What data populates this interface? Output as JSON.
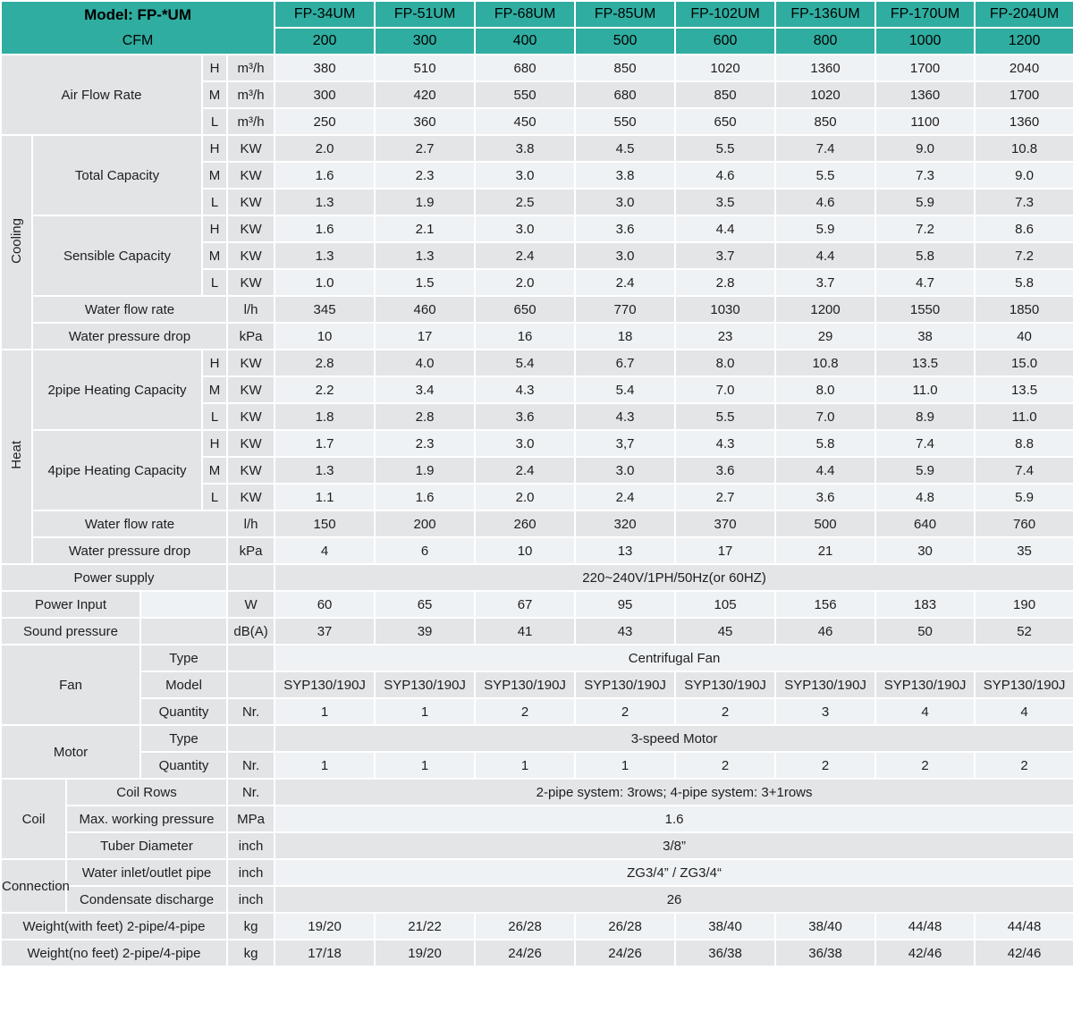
{
  "colors": {
    "header_teal": "#2fada0",
    "row_light": "#eff2f4",
    "row_dark": "#e3e5e7",
    "left_cell_gray": "#e2e4e6",
    "grid_white": "#ffffff"
  },
  "header": {
    "model_label": "Model: FP-*UM",
    "cfm_label": "CFM",
    "models": [
      "FP-34UM",
      "FP-51UM",
      "FP-68UM",
      "FP-85UM",
      "FP-102UM",
      "FP-136UM",
      "FP-170UM",
      "FP-204UM"
    ],
    "cfm": [
      "200",
      "300",
      "400",
      "500",
      "600",
      "800",
      "1000",
      "1200"
    ]
  },
  "rows": [
    {
      "label": {
        "text": "Air Flow Rate",
        "span": 4,
        "rowspan": 3
      },
      "speed": "H",
      "unit": "m³/h",
      "values": [
        "380",
        "510",
        "680",
        "850",
        "1020",
        "1360",
        "1700",
        "2040"
      ]
    },
    {
      "speed": "M",
      "unit": "m³/h",
      "values": [
        "300",
        "420",
        "550",
        "680",
        "850",
        "1020",
        "1360",
        "1700"
      ]
    },
    {
      "speed": "L",
      "unit": "m³/h",
      "values": [
        "250",
        "360",
        "450",
        "550",
        "650",
        "850",
        "1100",
        "1360"
      ]
    },
    {
      "group": {
        "text": "Cooling",
        "span": 1,
        "rowspan": 8,
        "vert": true
      },
      "label": {
        "text": "Total Capacity",
        "span": 3,
        "rowspan": 3
      },
      "speed": "H",
      "unit": "KW",
      "values": [
        "2.0",
        "2.7",
        "3.8",
        "4.5",
        "5.5",
        "7.4",
        "9.0",
        "10.8"
      ]
    },
    {
      "speed": "M",
      "unit": "KW",
      "values": [
        "1.6",
        "2.3",
        "3.0",
        "3.8",
        "4.6",
        "5.5",
        "7.3",
        "9.0"
      ]
    },
    {
      "speed": "L",
      "unit": "KW",
      "values": [
        "1.3",
        "1.9",
        "2.5",
        "3.0",
        "3.5",
        "4.6",
        "5.9",
        "7.3"
      ]
    },
    {
      "label": {
        "text": "Sensible Capacity",
        "span": 3,
        "rowspan": 3
      },
      "speed": "H",
      "unit": "KW",
      "values": [
        "1.6",
        "2.1",
        "3.0",
        "3.6",
        "4.4",
        "5.9",
        "7.2",
        "8.6"
      ]
    },
    {
      "speed": "M",
      "unit": "KW",
      "values": [
        "1.3",
        "1.3",
        "2.4",
        "3.0",
        "3.7",
        "4.4",
        "5.8",
        "7.2"
      ]
    },
    {
      "speed": "L",
      "unit": "KW",
      "values": [
        "1.0",
        "1.5",
        "2.0",
        "2.4",
        "2.8",
        "3.7",
        "4.7",
        "5.8"
      ]
    },
    {
      "label": {
        "text": "Water flow rate",
        "span": 4
      },
      "unit": "l/h",
      "values": [
        "345",
        "460",
        "650",
        "770",
        "1030",
        "1200",
        "1550",
        "1850"
      ]
    },
    {
      "label": {
        "text": "Water pressure drop",
        "span": 4
      },
      "unit": "kPa",
      "values": [
        "10",
        "17",
        "16",
        "18",
        "23",
        "29",
        "38",
        "40"
      ]
    },
    {
      "group": {
        "text": "Heat",
        "span": 1,
        "rowspan": 8,
        "vert": true
      },
      "label": {
        "text": "2pipe Heating Capacity",
        "span": 3,
        "rowspan": 3
      },
      "speed": "H",
      "unit": "KW",
      "values": [
        "2.8",
        "4.0",
        "5.4",
        "6.7",
        "8.0",
        "10.8",
        "13.5",
        "15.0"
      ]
    },
    {
      "speed": "M",
      "unit": "KW",
      "values": [
        "2.2",
        "3.4",
        "4.3",
        "5.4",
        "7.0",
        "8.0",
        "11.0",
        "13.5"
      ]
    },
    {
      "speed": "L",
      "unit": "KW",
      "values": [
        "1.8",
        "2.8",
        "3.6",
        "4.3",
        "5.5",
        "7.0",
        "8.9",
        "11.0"
      ]
    },
    {
      "label": {
        "text": "4pipe Heating Capacity",
        "span": 3,
        "rowspan": 3
      },
      "speed": "H",
      "unit": "KW",
      "values": [
        "1.7",
        "2.3",
        "3.0",
        "3,7",
        "4.3",
        "5.8",
        "7.4",
        "8.8"
      ]
    },
    {
      "speed": "M",
      "unit": "KW",
      "values": [
        "1.3",
        "1.9",
        "2.4",
        "3.0",
        "3.6",
        "4.4",
        "5.9",
        "7.4"
      ]
    },
    {
      "speed": "L",
      "unit": "KW",
      "values": [
        "1.1",
        "1.6",
        "2.0",
        "2.4",
        "2.7",
        "3.6",
        "4.8",
        "5.9"
      ]
    },
    {
      "label": {
        "text": "Water flow rate",
        "span": 4
      },
      "unit": "l/h",
      "values": [
        "150",
        "200",
        "260",
        "320",
        "370",
        "500",
        "640",
        "760"
      ]
    },
    {
      "label": {
        "text": "Water pressure drop",
        "span": 4
      },
      "unit": "kPa",
      "values": [
        "4",
        "6",
        "10",
        "13",
        "17",
        "21",
        "30",
        "35"
      ]
    },
    {
      "label": {
        "text": "Power supply",
        "span": 5
      },
      "unit": "",
      "valueSpan": "220~240V/1PH/50Hz(or 60HZ)"
    },
    {
      "label": {
        "text": "Power Input",
        "span": 3
      },
      "gap": true,
      "unit": "W",
      "values": [
        "60",
        "65",
        "67",
        "95",
        "105",
        "156",
        "183",
        "190"
      ]
    },
    {
      "label": {
        "text": "Sound pressure",
        "span": 3
      },
      "gap": true,
      "unit": "dB(A)",
      "values": [
        "37",
        "39",
        "41",
        "43",
        "45",
        "46",
        "50",
        "52"
      ]
    },
    {
      "group": {
        "text": "Fan",
        "span": 3,
        "rowspan": 3
      },
      "label": {
        "text": "Type",
        "span": 2
      },
      "unit": "",
      "valueSpan": "Centrifugal Fan"
    },
    {
      "label": {
        "text": "Model",
        "span": 2
      },
      "unit": "",
      "values": [
        "SYP130/190J",
        "SYP130/190J",
        "SYP130/190J",
        "SYP130/190J",
        "SYP130/190J",
        "SYP130/190J",
        "SYP130/190J",
        "SYP130/190J"
      ]
    },
    {
      "label": {
        "text": "Quantity",
        "span": 2
      },
      "unit": "Nr.",
      "values": [
        "1",
        "1",
        "2",
        "2",
        "2",
        "3",
        "4",
        "4"
      ]
    },
    {
      "group": {
        "text": "Motor",
        "span": 3,
        "rowspan": 2
      },
      "label": {
        "text": "Type",
        "span": 2
      },
      "unit": "",
      "valueSpan": "3-speed Motor"
    },
    {
      "label": {
        "text": "Quantity",
        "span": 2
      },
      "unit": "Nr.",
      "values": [
        "1",
        "1",
        "1",
        "1",
        "2",
        "2",
        "2",
        "2"
      ]
    },
    {
      "group": {
        "text": "Coil",
        "span": 2,
        "rowspan": 3
      },
      "label": {
        "text": "Coil Rows",
        "span": 3
      },
      "unit": "Nr.",
      "valueSpan": "2-pipe system: 3rows; 4-pipe system: 3+1rows"
    },
    {
      "label": {
        "text": "Max. working pressure",
        "span": 3
      },
      "unit": "MPa",
      "valueSpan": "1.6"
    },
    {
      "label": {
        "text": "Tuber Diameter",
        "span": 3
      },
      "unit": "inch",
      "valueSpan": "3/8”"
    },
    {
      "group": {
        "text": "Connection",
        "span": 2,
        "rowspan": 2
      },
      "label": {
        "text": "Water inlet/outlet pipe",
        "span": 3
      },
      "unit": "inch",
      "valueSpan": "ZG3/4” / ZG3/4“"
    },
    {
      "label": {
        "text": "Condensate discharge",
        "span": 3
      },
      "unit": "inch",
      "valueSpan": "26"
    },
    {
      "label": {
        "text": "Weight(with feet) 2-pipe/4-pipe",
        "span": 5
      },
      "unit": "kg",
      "values": [
        "19/20",
        "21/22",
        "26/28",
        "26/28",
        "38/40",
        "38/40",
        "44/48",
        "44/48"
      ]
    },
    {
      "label": {
        "text": "Weight(no feet) 2-pipe/4-pipe",
        "span": 5
      },
      "unit": "kg",
      "values": [
        "17/18",
        "19/20",
        "24/26",
        "24/26",
        "36/38",
        "36/38",
        "42/46",
        "42/46"
      ]
    }
  ]
}
